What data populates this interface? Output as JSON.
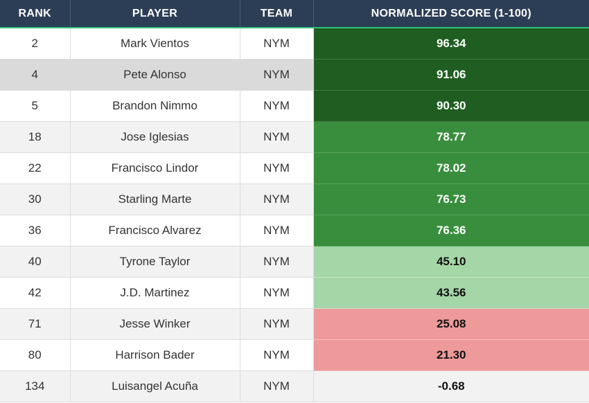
{
  "headers": {
    "rank": "RANK",
    "player": "PLAYER",
    "team": "TEAM",
    "score": "NORMALIZED SCORE (1-100)"
  },
  "score_colors": {
    "dark": "#1f5e20",
    "mid": "#388e3c",
    "light": "#a5d6a7",
    "red": "#ef9a9a"
  },
  "rows": [
    {
      "rank": "2",
      "player": "Mark Vientos",
      "team": "NYM",
      "score": "96.34",
      "tier": "dark"
    },
    {
      "rank": "4",
      "player": "Pete Alonso",
      "team": "NYM",
      "score": "91.06",
      "tier": "dark"
    },
    {
      "rank": "5",
      "player": "Brandon Nimmo",
      "team": "NYM",
      "score": "90.30",
      "tier": "dark"
    },
    {
      "rank": "18",
      "player": "Jose Iglesias",
      "team": "NYM",
      "score": "78.77",
      "tier": "mid"
    },
    {
      "rank": "22",
      "player": "Francisco Lindor",
      "team": "NYM",
      "score": "78.02",
      "tier": "mid"
    },
    {
      "rank": "30",
      "player": "Starling Marte",
      "team": "NYM",
      "score": "76.73",
      "tier": "mid"
    },
    {
      "rank": "36",
      "player": "Francisco Alvarez",
      "team": "NYM",
      "score": "76.36",
      "tier": "mid"
    },
    {
      "rank": "40",
      "player": "Tyrone Taylor",
      "team": "NYM",
      "score": "45.10",
      "tier": "light"
    },
    {
      "rank": "42",
      "player": "J.D. Martinez",
      "team": "NYM",
      "score": "43.56",
      "tier": "light"
    },
    {
      "rank": "71",
      "player": "Jesse Winker",
      "team": "NYM",
      "score": "25.08",
      "tier": "red"
    },
    {
      "rank": "80",
      "player": "Harrison Bader",
      "team": "NYM",
      "score": "21.30",
      "tier": "red"
    },
    {
      "rank": "134",
      "player": "Luisangel Acuña",
      "team": "NYM",
      "score": "-0.68",
      "tier": "none"
    }
  ]
}
